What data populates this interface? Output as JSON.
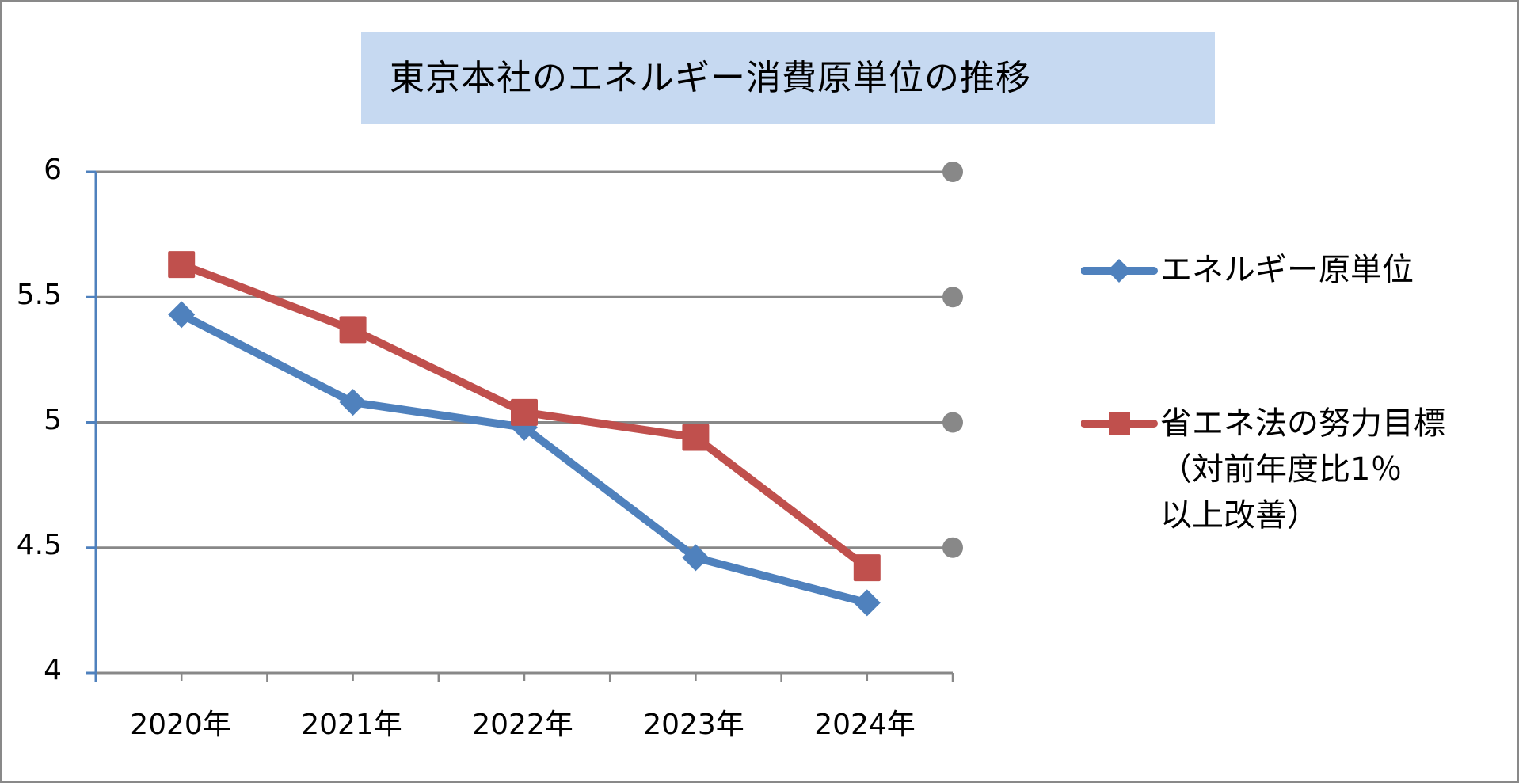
{
  "chart": {
    "title": "東京本社のエネルギー消費原単位の推移",
    "yticks": [
      "6",
      "5.5",
      "5",
      "4.5",
      "4"
    ],
    "xticks": [
      "2020年",
      "2021年",
      "2022年",
      "2023年",
      "2024年"
    ],
    "legend": [
      {
        "label": "エネルギー原単位",
        "color": "#4f81bd",
        "marker": "diamond"
      },
      {
        "label": "省エネ法の努力目標\n（対前年度比1％\n以上改善）",
        "color": "#c0504d",
        "marker": "square"
      }
    ]
  },
  "chart_data": {
    "type": "line",
    "title": "東京本社のエネルギー消費原単位の推移",
    "categories": [
      "2020年",
      "2021年",
      "2022年",
      "2023年",
      "2024年"
    ],
    "series": [
      {
        "name": "エネルギー原単位",
        "color": "#4f81bd",
        "marker": "diamond",
        "values": [
          5.43,
          5.08,
          4.98,
          4.46,
          4.28
        ]
      },
      {
        "name": "省エネ法の努力目標（対前年度比1％以上改善）",
        "color": "#c0504d",
        "marker": "square",
        "values": [
          5.63,
          5.37,
          5.04,
          4.94,
          4.42
        ]
      }
    ],
    "xlabel": "",
    "ylabel": "",
    "ylim": [
      4,
      6
    ],
    "yticks": [
      4,
      4.5,
      5,
      5.5,
      6
    ],
    "grid": true,
    "legend_position": "right"
  }
}
